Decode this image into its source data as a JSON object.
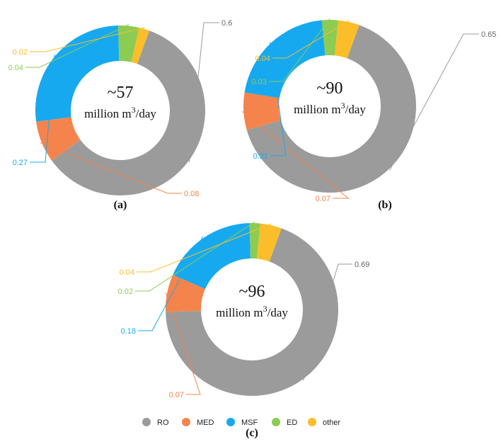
{
  "chart_data": [
    {
      "type": "pie",
      "panel_label": "(a)",
      "center_value": "~57",
      "center_unit_prefix": "million m",
      "center_unit_sup": "3",
      "center_unit_suffix": "/day",
      "categories": [
        "RO",
        "MED",
        "MSF",
        "ED",
        "other"
      ],
      "values": [
        0.6,
        0.08,
        0.27,
        0.04,
        0.02
      ],
      "labels": [
        "0.6",
        "0.08",
        "0.27",
        "0.04",
        "0.02"
      ]
    },
    {
      "type": "pie",
      "panel_label": "(b)",
      "center_value": "~90",
      "center_unit_prefix": "million m",
      "center_unit_sup": "3",
      "center_unit_suffix": "/day",
      "categories": [
        "RO",
        "MED",
        "MSF",
        "ED",
        "other"
      ],
      "values": [
        0.65,
        0.07,
        0.21,
        0.03,
        0.04
      ],
      "labels": [
        "0.65",
        "0.07",
        "0.21",
        "0.03",
        "0.04"
      ]
    },
    {
      "type": "pie",
      "panel_label": "(c)",
      "center_value": "~96",
      "center_unit_prefix": "million m",
      "center_unit_sup": "3",
      "center_unit_suffix": "/day",
      "categories": [
        "RO",
        "MED",
        "MSF",
        "ED",
        "other"
      ],
      "values": [
        0.69,
        0.07,
        0.18,
        0.02,
        0.04
      ],
      "labels": [
        "0.69",
        "0.07",
        "0.18",
        "0.02",
        "0.04"
      ]
    }
  ],
  "legend": [
    {
      "name": "RO",
      "color": "#9b9b9b"
    },
    {
      "name": "MED",
      "color": "#f5844c"
    },
    {
      "name": "MSF",
      "color": "#17a9ef"
    },
    {
      "name": "ED",
      "color": "#8ccc52"
    },
    {
      "name": "other",
      "color": "#fbbd2a"
    }
  ]
}
